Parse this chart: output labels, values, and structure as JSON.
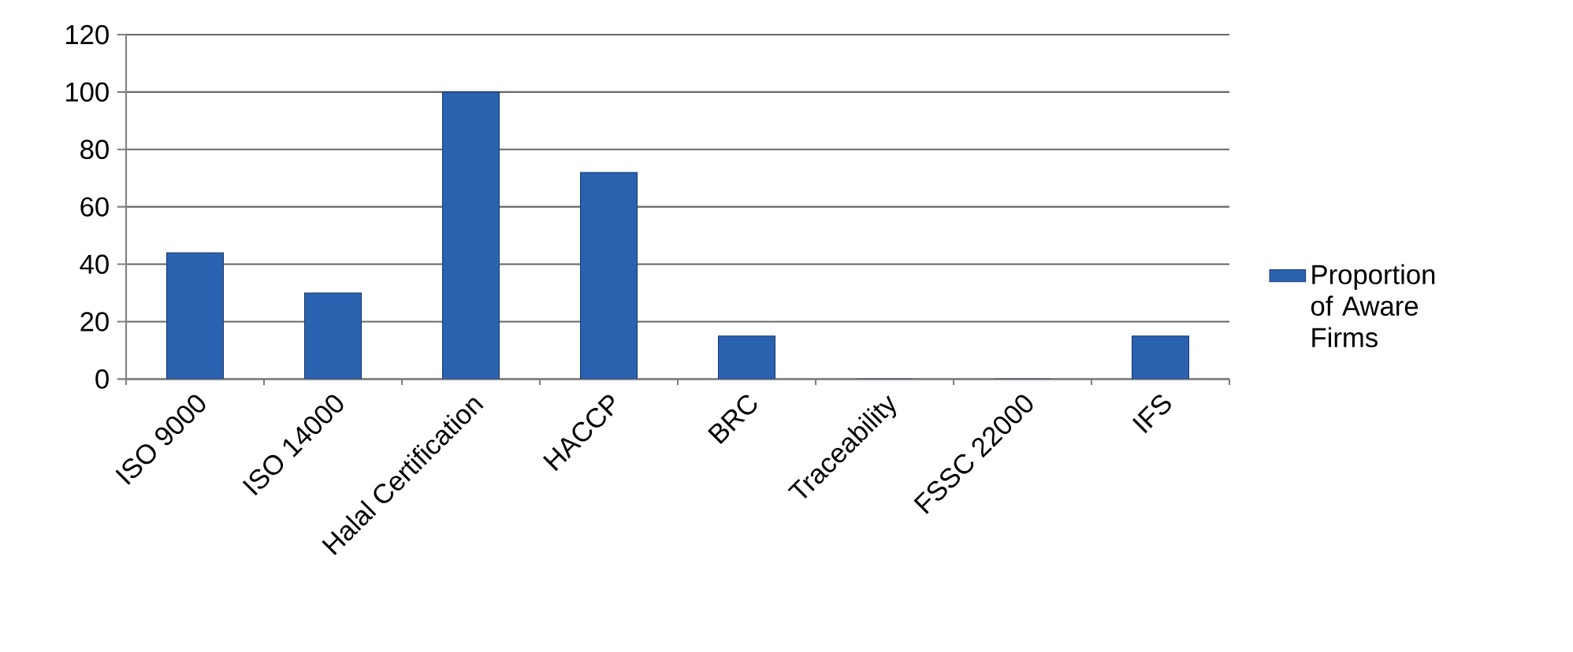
{
  "chart_data": {
    "type": "bar",
    "categories": [
      "ISO 9000",
      "ISO 14000",
      "Halal Certification",
      "HACCP",
      "BRC",
      "Traceability",
      "FSSC 22000",
      "IFS"
    ],
    "series": [
      {
        "name": "Proportion of Aware Firms",
        "color": "#2a62b0",
        "values": [
          44,
          30,
          100,
          72,
          15,
          0,
          0,
          15
        ]
      }
    ],
    "ylim": [
      0,
      120
    ],
    "yticks": [
      0,
      20,
      40,
      60,
      80,
      100,
      120
    ],
    "grid": "y",
    "legend": "right"
  }
}
